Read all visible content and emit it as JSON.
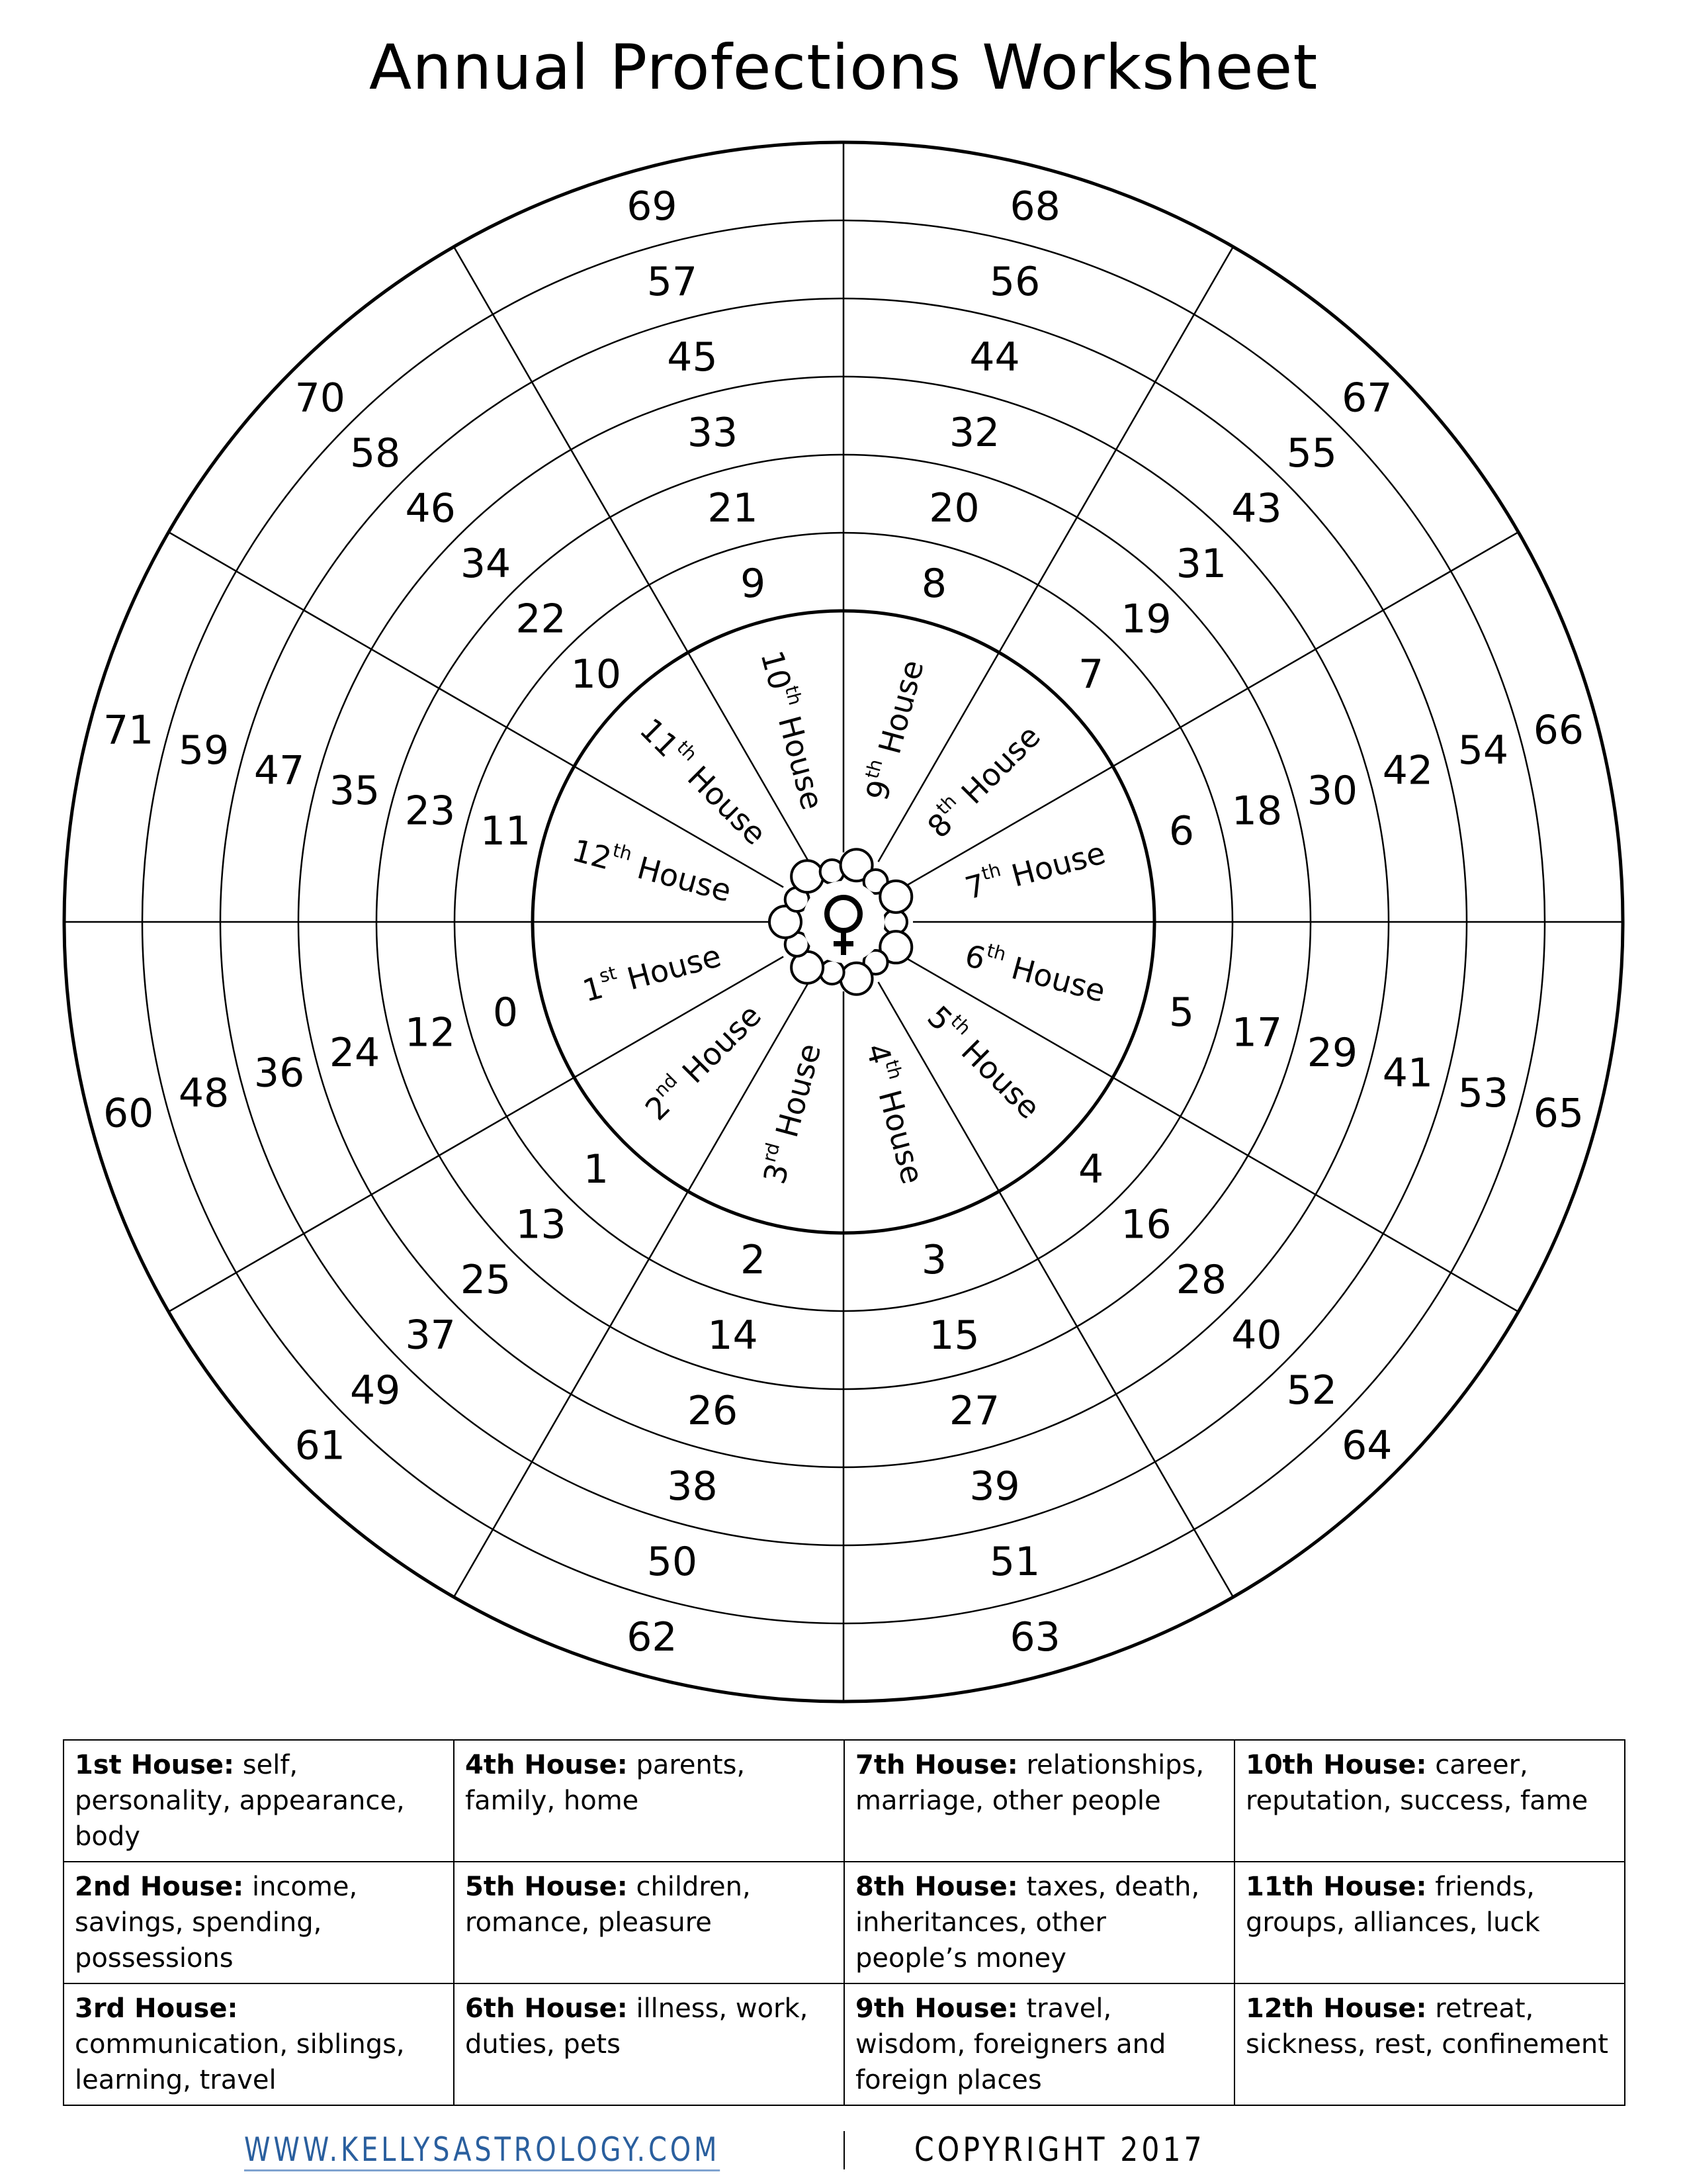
{
  "title": "Annual Profections Worksheet",
  "center_icon": "venus-symbol-icon",
  "house_word": "House",
  "houses": [
    {
      "num": "1",
      "sup": "st",
      "ages": [
        "0",
        "12",
        "24",
        "36",
        "48",
        "60"
      ]
    },
    {
      "num": "2",
      "sup": "nd",
      "ages": [
        "1",
        "13",
        "25",
        "37",
        "49",
        "61"
      ]
    },
    {
      "num": "3",
      "sup": "rd",
      "ages": [
        "2",
        "14",
        "26",
        "38",
        "50",
        "62"
      ]
    },
    {
      "num": "4",
      "sup": "th",
      "ages": [
        "3",
        "15",
        "27",
        "39",
        "51",
        "63"
      ]
    },
    {
      "num": "5",
      "sup": "th",
      "ages": [
        "4",
        "16",
        "28",
        "40",
        "52",
        "64"
      ]
    },
    {
      "num": "6",
      "sup": "th",
      "ages": [
        "5",
        "17",
        "29",
        "41",
        "53",
        "65"
      ]
    },
    {
      "num": "7",
      "sup": "th",
      "ages": [
        "6",
        "18",
        "30",
        "42",
        "54",
        "66"
      ]
    },
    {
      "num": "8",
      "sup": "th",
      "ages": [
        "7",
        "19",
        "31",
        "43",
        "55",
        "67"
      ]
    },
    {
      "num": "9",
      "sup": "th",
      "ages": [
        "8",
        "20",
        "32",
        "44",
        "56",
        "68"
      ]
    },
    {
      "num": "10",
      "sup": "th",
      "ages": [
        "9",
        "21",
        "33",
        "45",
        "57",
        "69"
      ]
    },
    {
      "num": "11",
      "sup": "th",
      "ages": [
        "10",
        "22",
        "34",
        "46",
        "58",
        "70"
      ]
    },
    {
      "num": "12",
      "sup": "th",
      "ages": [
        "11",
        "23",
        "35",
        "47",
        "59",
        "71"
      ]
    }
  ],
  "meanings": [
    [
      {
        "title": "1st House:",
        "text": "self, personality, appearance, body"
      },
      {
        "title": "4th House:",
        "text": "parents, family, home"
      },
      {
        "title": "7th House:",
        "text": "relationships, marriage, other people"
      },
      {
        "title": "10th House:",
        "text": "career, reputation, success, fame"
      }
    ],
    [
      {
        "title": "2nd House:",
        "text": "income, savings, spending, possessions"
      },
      {
        "title": "5th House:",
        "text": "children, romance, pleasure"
      },
      {
        "title": "8th House:",
        "text": "taxes, death, inheritances, other people’s money"
      },
      {
        "title": "11th House:",
        "text": "friends, groups, alliances, luck"
      }
    ],
    [
      {
        "title": "3rd House:",
        "text": "communication, siblings, learning, travel"
      },
      {
        "title": "6th House:",
        "text": "illness, work, duties, pets"
      },
      {
        "title": "9th House:",
        "text": "travel, wisdom, foreigners and foreign places"
      },
      {
        "title": "12th House:",
        "text": "retreat, sickness, rest, confinement"
      }
    ]
  ],
  "footer": {
    "website": "WWW.KELLYSASTROLOGY.COM",
    "copyright": "COPYRIGHT 2017",
    "link_color": "#2a5f9e"
  }
}
